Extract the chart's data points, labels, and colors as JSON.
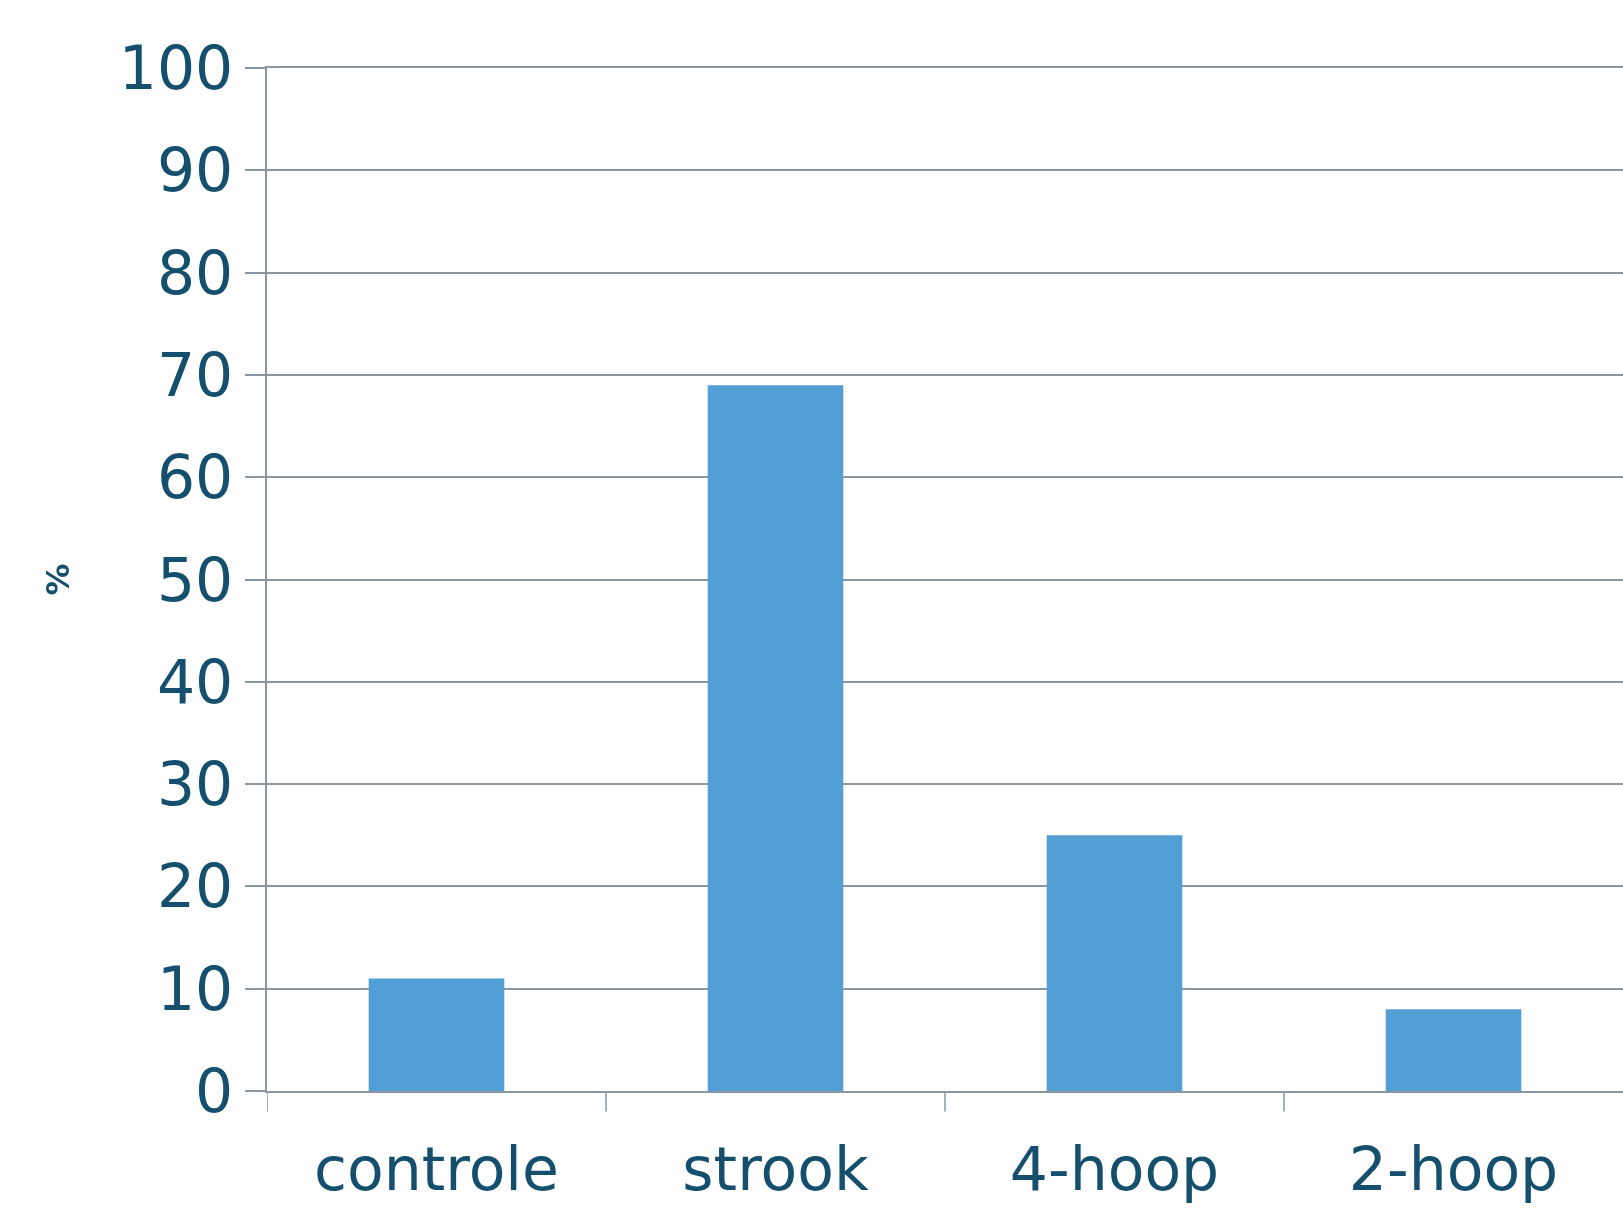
{
  "chart_data": {
    "type": "bar",
    "ylabel": "%",
    "categories": [
      "controle",
      "strook",
      "4-hoop",
      "2-hoop"
    ],
    "values": [
      11,
      69,
      25,
      8
    ],
    "color": "#529fd6",
    "ylim": [
      0,
      100
    ],
    "yticks": [
      0,
      10,
      20,
      30,
      40,
      50,
      60,
      70,
      80,
      90,
      100
    ],
    "grid": "y"
  }
}
